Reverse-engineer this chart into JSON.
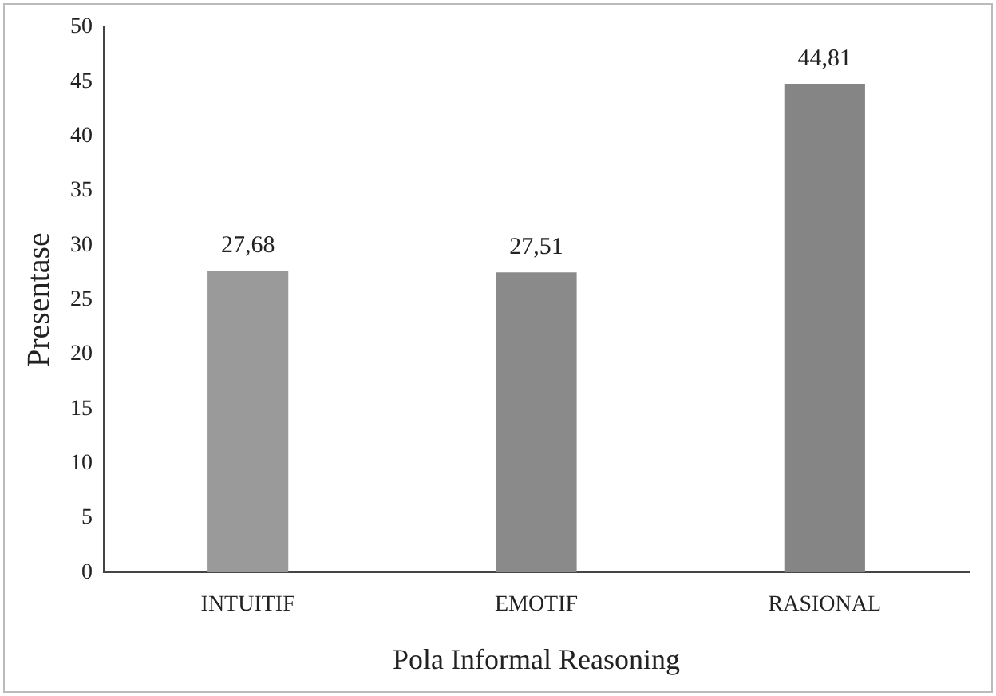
{
  "chart_data": {
    "type": "bar",
    "xlabel": "Pola Informal Reasoning",
    "ylabel": "Presentase",
    "categories": [
      "INTUITIF",
      "EMOTIF",
      "RASIONAL"
    ],
    "values": [
      27.68,
      27.51,
      44.81
    ],
    "colors": [
      "#9a9a9a",
      "#8a8a8a",
      "#858585"
    ],
    "value_labels": [
      "27,68",
      "27,51",
      "44,81"
    ],
    "ylim": [
      0,
      50
    ],
    "yticks": [
      0,
      5,
      10,
      15,
      20,
      25,
      30,
      35,
      40,
      45,
      50
    ],
    "grid": false,
    "legend": false
  }
}
